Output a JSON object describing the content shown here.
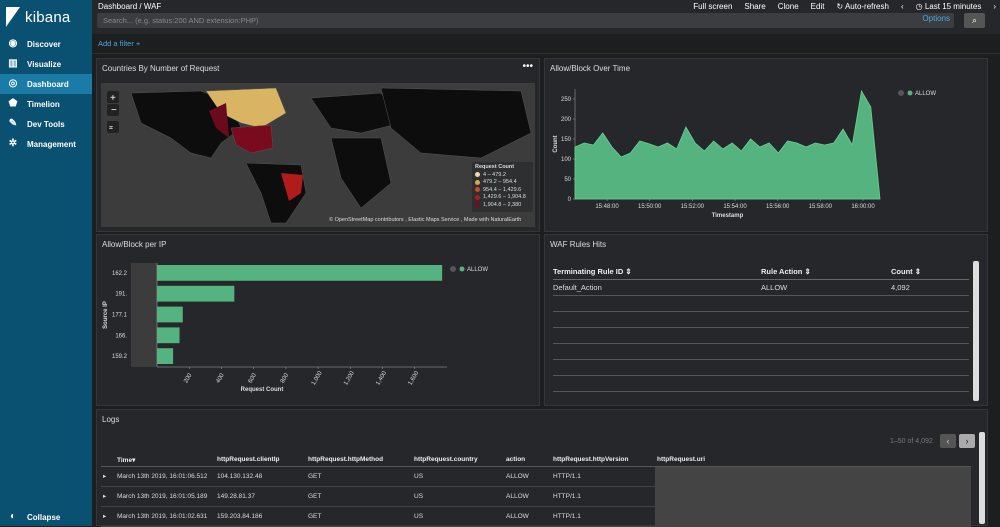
{
  "app": {
    "name": "kibana"
  },
  "sidebar": {
    "items": [
      {
        "label": "Discover",
        "icon": "compass-icon"
      },
      {
        "label": "Visualize",
        "icon": "bar-chart-icon"
      },
      {
        "label": "Dashboard",
        "icon": "dashboard-icon"
      },
      {
        "label": "Timelion",
        "icon": "shield-icon"
      },
      {
        "label": "Dev Tools",
        "icon": "wrench-icon"
      },
      {
        "label": "Management",
        "icon": "gear-icon"
      }
    ],
    "collapse": "Collapse"
  },
  "topbar": {
    "breadcrumb_root": "Dashboard",
    "breadcrumb_sep": "/",
    "breadcrumb_current": "WAF",
    "links": [
      "Full screen",
      "Share",
      "Clone",
      "Edit",
      "Auto-refresh",
      "Last 15 minutes"
    ],
    "search_placeholder": "Search... (e.g. status:200 AND extension:PHP)",
    "options": "Options"
  },
  "filter": {
    "add": "Add a filter +"
  },
  "panels": {
    "map": {
      "title": "Countries By Number of Request",
      "legend_title": "Request Count",
      "legend": [
        {
          "label": "4 – 479.2",
          "color": "#e9dcaa"
        },
        {
          "label": "479.2 – 954.4",
          "color": "#d9a84a"
        },
        {
          "label": "954.4 – 1,429.6",
          "color": "#c94a20"
        },
        {
          "label": "1,429.6 – 1,904.8",
          "color": "#b11b1c"
        },
        {
          "label": "1,904.8 – 2,380",
          "color": "#7a0a1e"
        }
      ],
      "attribution": "© OpenStreetMap contributors , Elastic Maps Service , Made with NaturalEarth"
    },
    "over_time": {
      "title": "Allow/Block Over Time",
      "legend": "ALLOW"
    },
    "per_ip": {
      "title": "Allow/Block per IP",
      "legend": "ALLOW"
    },
    "rules": {
      "title": "WAF Rules Hits",
      "columns": [
        "Terminating Rule ID",
        "Rule Action",
        "Count"
      ],
      "rows": [
        [
          "Default_Action",
          "ALLOW",
          "4,092"
        ]
      ]
    },
    "logs": {
      "title": "Logs",
      "pagination": "1–50 of 4,092",
      "columns": [
        "Time",
        "httpRequest.clientIp",
        "httpRequest.httpMethod",
        "httpRequest.country",
        "action",
        "httpRequest.httpVersion",
        "httpRequest.uri"
      ],
      "rows": [
        [
          "March 13th 2019, 16:01:06.512",
          "104.130.132.48",
          "GET",
          "US",
          "ALLOW",
          "HTTP/1.1",
          ""
        ],
        [
          "March 13th 2019, 16:01:05.189",
          "149.28.81.37",
          "GET",
          "US",
          "ALLOW",
          "HTTP/1.1",
          ""
        ],
        [
          "March 13th 2019, 16:01:02.631",
          "159.203.84.186",
          "GET",
          "US",
          "ALLOW",
          "HTTP/1.1",
          ""
        ]
      ]
    }
  },
  "chart_data": [
    {
      "type": "area",
      "title": "Allow/Block Over Time",
      "xlabel": "Timestamp",
      "ylabel": "Count",
      "x_ticks": [
        "15:48:00",
        "15:50:00",
        "15:52:00",
        "15:54:00",
        "15:56:00",
        "15:58:00",
        "16:00:00"
      ],
      "y_ticks": [
        0,
        50,
        100,
        150,
        200,
        250
      ],
      "ylim": [
        0,
        275
      ],
      "series": [
        {
          "name": "ALLOW",
          "color": "#54b37f",
          "values": [
            130,
            140,
            135,
            165,
            130,
            105,
            115,
            145,
            138,
            130,
            140,
            125,
            180,
            140,
            120,
            145,
            125,
            140,
            120,
            150,
            130,
            140,
            115,
            145,
            140,
            130,
            140,
            135,
            140,
            175,
            135,
            270,
            230,
            0
          ]
        }
      ]
    },
    {
      "type": "bar",
      "title": "Allow/Block per IP",
      "xlabel": "Request Count",
      "ylabel": "Source IP",
      "categories": [
        "162.2",
        "191.",
        "177.1",
        "166.",
        "159.2"
      ],
      "x_ticks": [
        "200",
        "400",
        "600",
        "800",
        "1,000",
        "1,200",
        "1,400",
        "1,600"
      ],
      "xlim": [
        0,
        1800
      ],
      "series": [
        {
          "name": "ALLOW",
          "color": "#54b37f",
          "values": [
            1770,
            480,
            160,
            140,
            100
          ]
        }
      ]
    }
  ]
}
